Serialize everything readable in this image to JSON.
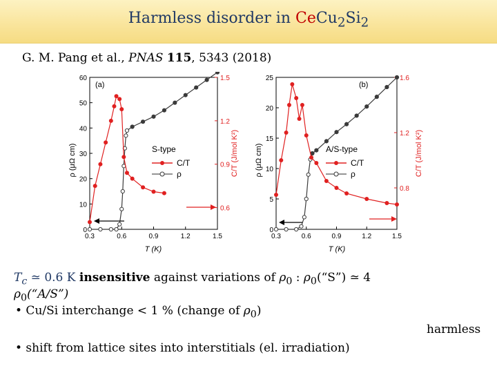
{
  "title": {
    "prefix": "Harmless disorder in ",
    "ce": "Ce",
    "rest": "Cu",
    "sub1": "2",
    "si": "Si",
    "sub2": "2"
  },
  "citation": {
    "authors": "G. M. Pang et al., ",
    "journal": "PNAS",
    "volume": "115",
    "rest": ", 5343 (2018)"
  },
  "chart_data": [
    {
      "panel": "(a)",
      "type": "line",
      "xlabel": "T (K)",
      "ylabel_left": "ρ (μΩ cm)",
      "ylabel_right": "C/T (J/mol K²)",
      "xlim": [
        0.3,
        1.5
      ],
      "ylim_left": [
        0,
        60
      ],
      "ylim_right": [
        0.45,
        1.5
      ],
      "x_ticks": [
        "0.3",
        "0.6",
        "0.9",
        "1.2",
        "1.5"
      ],
      "y_ticks_left": [
        "0",
        "10",
        "20",
        "30",
        "40",
        "50",
        "60"
      ],
      "y_ticks_right": [
        "0.6",
        "0.9",
        "1.2",
        "1.5"
      ],
      "legend": {
        "title": "S-type",
        "entries": [
          "C/T",
          "ρ"
        ],
        "position": "center-right"
      },
      "series": [
        {
          "name": "ρ",
          "axis": "left",
          "color": "#3a3a3a",
          "x": [
            0.3,
            0.4,
            0.5,
            0.55,
            0.58,
            0.6,
            0.61,
            0.62,
            0.63,
            0.64,
            0.65,
            0.7,
            0.8,
            0.9,
            1.0,
            1.1,
            1.2,
            1.3,
            1.4,
            1.5
          ],
          "y": [
            0,
            0,
            0,
            0,
            2,
            8,
            15,
            25,
            32,
            37,
            39,
            40.5,
            42.5,
            44.5,
            47,
            50,
            53,
            56,
            59,
            62
          ]
        },
        {
          "name": "C/T",
          "axis": "right",
          "color": "#e02020",
          "x": [
            0.3,
            0.35,
            0.4,
            0.45,
            0.5,
            0.53,
            0.55,
            0.58,
            0.6,
            0.62,
            0.65,
            0.7,
            0.8,
            0.9,
            1.0
          ],
          "y": [
            0.5,
            0.75,
            0.9,
            1.05,
            1.2,
            1.3,
            1.37,
            1.35,
            1.28,
            0.95,
            0.84,
            0.8,
            0.74,
            0.71,
            0.7
          ]
        }
      ]
    },
    {
      "panel": "(b)",
      "type": "line",
      "xlabel": "T (K)",
      "ylabel_left": "ρ (μΩ cm)",
      "ylabel_right": "C/T (J/mol K²)",
      "xlim": [
        0.3,
        1.5
      ],
      "ylim_left": [
        0,
        25
      ],
      "ylim_right": [
        0.5,
        1.6
      ],
      "x_ticks": [
        "0.3",
        "0.6",
        "0.9",
        "1.2",
        "1.5"
      ],
      "y_ticks_left": [
        "0",
        "5",
        "10",
        "15",
        "20",
        "25"
      ],
      "y_ticks_right": [
        "0.8",
        "1.2",
        "1.6"
      ],
      "legend": {
        "title": "A/S-type",
        "entries": [
          "C/T",
          "ρ"
        ],
        "position": "center-right"
      },
      "series": [
        {
          "name": "ρ",
          "axis": "left",
          "color": "#3a3a3a",
          "x": [
            0.3,
            0.4,
            0.5,
            0.55,
            0.58,
            0.6,
            0.62,
            0.64,
            0.66,
            0.7,
            0.8,
            0.9,
            1.0,
            1.1,
            1.2,
            1.3,
            1.4,
            1.5
          ],
          "y": [
            0,
            0,
            0,
            0.5,
            2,
            5,
            9,
            11.5,
            12.5,
            13,
            14.5,
            16,
            17.3,
            18.7,
            20.2,
            21.8,
            23.4,
            25
          ]
        },
        {
          "name": "C/T",
          "axis": "right",
          "color": "#e02020",
          "x": [
            0.3,
            0.35,
            0.4,
            0.43,
            0.46,
            0.5,
            0.53,
            0.56,
            0.6,
            0.65,
            0.7,
            0.8,
            0.9,
            1.0,
            1.2,
            1.4,
            1.5
          ],
          "y": [
            0.75,
            1.0,
            1.2,
            1.4,
            1.55,
            1.45,
            1.3,
            1.4,
            1.18,
            1.02,
            0.98,
            0.85,
            0.8,
            0.76,
            0.72,
            0.69,
            0.68
          ]
        }
      ]
    }
  ],
  "text": {
    "tc": "T",
    "tc_sub": "c",
    "tc_val": " ≃ 0.6 K ",
    "insensitive": "insensitive",
    "against": " against variations of ",
    "rho0": "ρ",
    "zero": "0",
    "colon": " : ",
    "rho0b": "ρ",
    "s": "(“S”) ≃ 4",
    "line2_rho": "ρ",
    "line2_sub": "0",
    "line2_as": "(“A/S”)",
    "bullet1": "• Cu/Si interchange < 1 % (change of ",
    "bullet1_rho": "ρ",
    "bullet1_sub": "0",
    "bullet1_close": ")",
    "harmless": "harmless",
    "bullet2": "• shift from lattice sites into interstitials (el. irradiation)"
  }
}
